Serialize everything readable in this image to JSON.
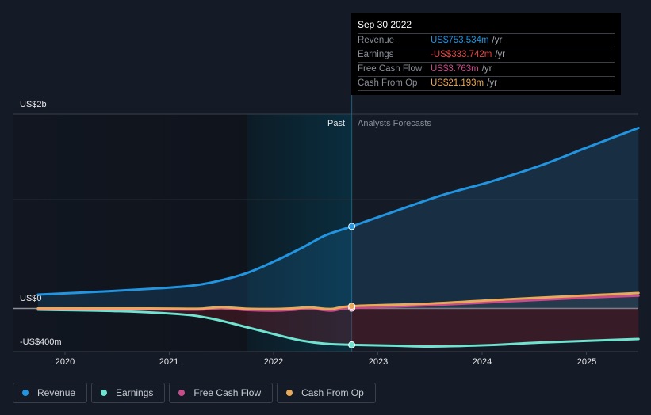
{
  "tooltip": {
    "date": "Sep 30 2022",
    "rows": [
      {
        "label": "Revenue",
        "value": "US$753.534m",
        "unit": "/yr",
        "color": "#2394df"
      },
      {
        "label": "Earnings",
        "value": "-US$333.742m",
        "unit": "/yr",
        "color": "#e64545"
      },
      {
        "label": "Free Cash Flow",
        "value": "US$3.763m",
        "unit": "/yr",
        "color": "#c94b8a"
      },
      {
        "label": "Cash From Op",
        "value": "US$21.193m",
        "unit": "/yr",
        "color": "#e8a95a"
      }
    ]
  },
  "labels": {
    "past": "Past",
    "forecast": "Analysts Forecasts"
  },
  "legend": [
    {
      "label": "Revenue",
      "color": "#2394df"
    },
    {
      "label": "Earnings",
      "color": "#6ee3d0"
    },
    {
      "label": "Free Cash Flow",
      "color": "#c94b8a"
    },
    {
      "label": "Cash From Op",
      "color": "#e8a95a"
    }
  ],
  "chart_data": {
    "type": "line",
    "title": "",
    "xlabel": "",
    "ylabel": "",
    "y_tick_labels": [
      {
        "label": "US$2b",
        "value": 1780
      },
      {
        "label": "US$0",
        "value": 0
      },
      {
        "label": "-US$400m",
        "value": -400
      }
    ],
    "y_gridlines": [
      1000
    ],
    "x_ticks": [
      {
        "label": "2020",
        "value": 2020
      },
      {
        "label": "2021",
        "value": 2021
      },
      {
        "label": "2022",
        "value": 2022
      },
      {
        "label": "2023",
        "value": 2023
      },
      {
        "label": "2024",
        "value": 2024
      },
      {
        "label": "2025",
        "value": 2025
      }
    ],
    "xlim": [
      2019.74,
      2025.5
    ],
    "ylim": [
      -400,
      1780
    ],
    "past_highlight_start": 2021.75,
    "now": 2022.75,
    "series": [
      {
        "name": "Revenue",
        "color": "#2394df",
        "x": [
          2019.74,
          2020.37,
          2020.9,
          2021.2,
          2021.43,
          2021.74,
          2022.04,
          2022.27,
          2022.5,
          2022.75,
          2023.18,
          2023.63,
          2024.09,
          2024.55,
          2025.0,
          2025.5
        ],
        "values": [
          127,
          156,
          185,
          207,
          244,
          324,
          447,
          556,
          673,
          753.5,
          898,
          1044,
          1167,
          1309,
          1476,
          1658
        ]
      },
      {
        "name": "Earnings",
        "color": "#6ee3d0",
        "x": [
          2019.74,
          2020.52,
          2021.13,
          2021.43,
          2021.74,
          2022.04,
          2022.27,
          2022.5,
          2022.75,
          2023.18,
          2023.52,
          2024.1,
          2024.55,
          2025.5
        ],
        "values": [
          -11,
          -25,
          -55,
          -98,
          -171,
          -244,
          -295,
          -324,
          -333.7,
          -342,
          -349,
          -335,
          -313,
          -280
        ]
      },
      {
        "name": "Free Cash Flow",
        "color": "#c94b8a",
        "x": [
          2019.74,
          2020.3,
          2020.8,
          2021.1,
          2021.3,
          2021.5,
          2021.75,
          2022.0,
          2022.2,
          2022.35,
          2022.55,
          2022.75,
          2023.5,
          2024.25,
          2025.0,
          2025.5
        ],
        "values": [
          -5,
          -7,
          -8,
          -10,
          -10,
          2,
          -15,
          -20,
          -12,
          0,
          -20,
          3.8,
          30,
          65,
          100,
          118
        ]
      },
      {
        "name": "Cash From Op",
        "color": "#e8a95a",
        "x": [
          2019.74,
          2020.3,
          2020.8,
          2021.1,
          2021.3,
          2021.5,
          2021.75,
          2022.0,
          2022.2,
          2022.35,
          2022.55,
          2022.75,
          2023.5,
          2024.25,
          2025.0,
          2025.5
        ],
        "values": [
          0,
          0,
          0,
          -2,
          -2,
          12,
          -3,
          -5,
          2,
          10,
          -5,
          21.2,
          45,
          85,
          120,
          142
        ]
      }
    ]
  }
}
